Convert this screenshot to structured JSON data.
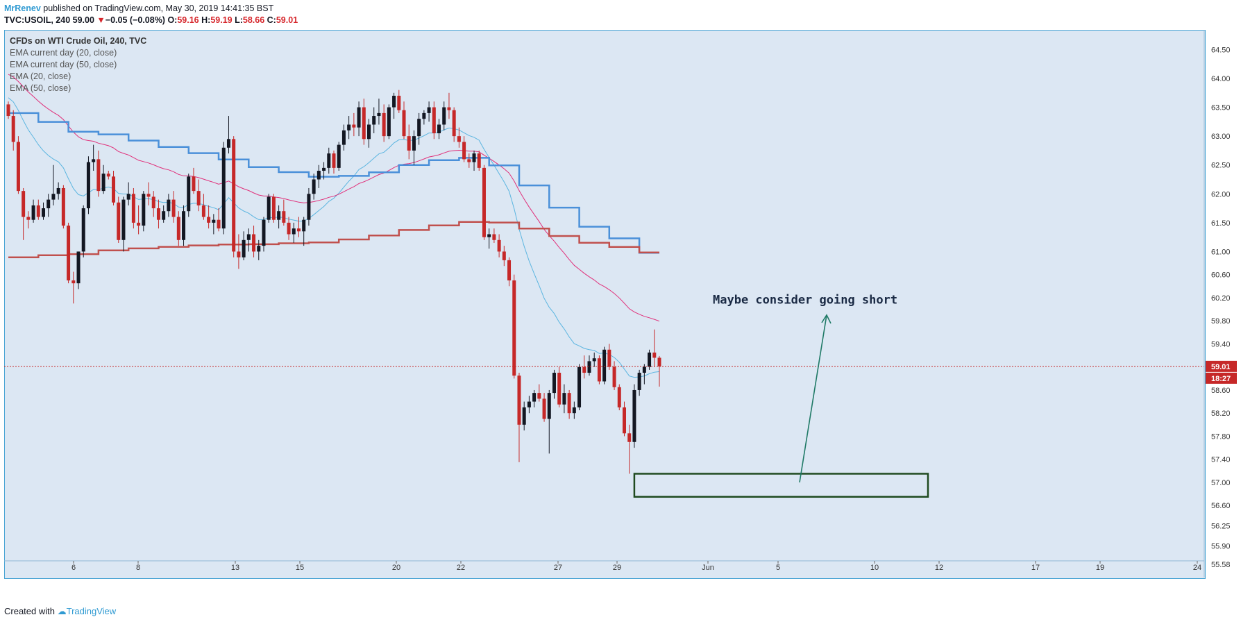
{
  "header": {
    "author": "MrRenev",
    "published": "published on TradingView.com, May 30, 2019 14:41:35 BST",
    "symbol": "TVC:USOIL, 240",
    "last": "59.00",
    "change": "−0.05 (−0.08%)",
    "o_label": "O:",
    "o": "59.16",
    "h_label": "H:",
    "h": "59.19",
    "l_label": "L:",
    "l": "58.66",
    "c_label": "C:",
    "c": "59.01"
  },
  "legend": {
    "title": "CFDs on WTI Crude Oil, 240, TVC",
    "items": [
      "EMA current day (20, close)",
      "EMA current day (50, close)",
      "EMA (20, close)",
      "EMA (50, close)"
    ]
  },
  "annotation": {
    "text": "Maybe consider going short"
  },
  "price_label": "59.01",
  "countdown_label": "18:27",
  "footer": {
    "prefix": "Created with",
    "brand": "TradingView"
  },
  "colors": {
    "up": "#131722",
    "down": "#c62828",
    "ema_daily_20": "#4a90d9",
    "ema_daily_50": "#c0504d",
    "ema20": "#5bb5e0",
    "ema50": "#e0307a",
    "annotation": "#1f7a66",
    "box": "#1f4a1f"
  },
  "chart_data": {
    "type": "candlestick",
    "interval": "240",
    "y_ticks": [
      "64.50",
      "64.00",
      "63.50",
      "63.00",
      "62.50",
      "62.00",
      "61.50",
      "61.00",
      "60.60",
      "60.20",
      "59.80",
      "59.40",
      "59.01",
      "58.60",
      "58.20",
      "57.80",
      "57.40",
      "57.00",
      "56.60",
      "56.25",
      "55.90",
      "55.58"
    ],
    "x_ticks": [
      "6",
      "8",
      "13",
      "15",
      "20",
      "22",
      "27",
      "29",
      "Jun",
      "5",
      "10",
      "12",
      "17",
      "19",
      "24"
    ],
    "price_range": [
      55.45,
      64.8
    ],
    "last_price": 59.01,
    "candles": [
      [
        63.55,
        63.6,
        63.3,
        63.35
      ],
      [
        63.35,
        63.45,
        62.75,
        62.9
      ],
      [
        62.9,
        63.0,
        62.0,
        62.05
      ],
      [
        62.05,
        62.1,
        61.2,
        61.6
      ],
      [
        61.6,
        61.7,
        61.4,
        61.55
      ],
      [
        61.55,
        61.9,
        61.5,
        61.8
      ],
      [
        61.8,
        61.9,
        61.55,
        61.6
      ],
      [
        61.6,
        61.85,
        61.55,
        61.75
      ],
      [
        61.75,
        62.0,
        61.6,
        61.9
      ],
      [
        61.9,
        62.5,
        61.8,
        62.0
      ],
      [
        62.0,
        62.2,
        61.9,
        62.1
      ],
      [
        62.1,
        62.15,
        61.4,
        61.45
      ],
      [
        61.45,
        61.5,
        60.45,
        60.5
      ],
      [
        60.5,
        60.65,
        60.1,
        60.45
      ],
      [
        60.45,
        61.0,
        60.35,
        61.0
      ],
      [
        61.0,
        61.8,
        60.9,
        61.75
      ],
      [
        61.75,
        62.65,
        61.65,
        62.55
      ],
      [
        62.55,
        62.85,
        62.4,
        62.6
      ],
      [
        62.6,
        62.75,
        61.95,
        62.05
      ],
      [
        62.05,
        62.5,
        62.0,
        62.35
      ],
      [
        62.35,
        62.4,
        62.25,
        62.3
      ],
      [
        62.3,
        62.4,
        61.8,
        61.85
      ],
      [
        61.85,
        61.95,
        61.15,
        61.2
      ],
      [
        61.2,
        61.95,
        61.0,
        61.9
      ],
      [
        61.9,
        62.2,
        61.8,
        62.0
      ],
      [
        62.0,
        62.1,
        61.4,
        61.5
      ],
      [
        61.5,
        61.8,
        61.3,
        61.45
      ],
      [
        61.45,
        62.05,
        61.35,
        62.0
      ],
      [
        62.0,
        62.2,
        61.8,
        61.95
      ],
      [
        61.95,
        62.05,
        61.6,
        61.75
      ],
      [
        61.75,
        61.9,
        61.4,
        61.55
      ],
      [
        61.55,
        61.8,
        61.5,
        61.7
      ],
      [
        61.7,
        62.0,
        61.6,
        61.9
      ],
      [
        61.9,
        62.05,
        61.5,
        61.6
      ],
      [
        61.6,
        61.7,
        61.1,
        61.2
      ],
      [
        61.2,
        61.8,
        61.1,
        61.7
      ],
      [
        61.7,
        62.35,
        61.6,
        62.3
      ],
      [
        62.3,
        62.45,
        62.0,
        62.05
      ],
      [
        62.05,
        62.25,
        61.7,
        61.8
      ],
      [
        61.8,
        62.0,
        61.55,
        61.6
      ],
      [
        61.6,
        61.8,
        61.4,
        61.5
      ],
      [
        61.5,
        61.65,
        61.3,
        61.55
      ],
      [
        61.55,
        61.75,
        61.35,
        61.4
      ],
      [
        61.4,
        62.9,
        61.3,
        62.8
      ],
      [
        62.8,
        63.35,
        62.7,
        62.95
      ],
      [
        62.95,
        63.0,
        60.9,
        61.0
      ],
      [
        61.0,
        61.3,
        60.7,
        60.9
      ],
      [
        60.9,
        61.35,
        60.85,
        61.2
      ],
      [
        61.2,
        61.4,
        61.0,
        61.3
      ],
      [
        61.3,
        61.45,
        60.9,
        61.0
      ],
      [
        61.0,
        61.2,
        60.85,
        61.1
      ],
      [
        61.1,
        61.6,
        61.0,
        61.55
      ],
      [
        61.55,
        62.0,
        61.5,
        61.95
      ],
      [
        61.95,
        62.0,
        61.5,
        61.55
      ],
      [
        61.55,
        61.8,
        61.4,
        61.7
      ],
      [
        61.7,
        61.9,
        61.45,
        61.5
      ],
      [
        61.5,
        61.6,
        61.2,
        61.3
      ],
      [
        61.3,
        61.5,
        61.15,
        61.4
      ],
      [
        61.4,
        61.6,
        61.25,
        61.35
      ],
      [
        61.35,
        61.6,
        61.1,
        61.55
      ],
      [
        61.55,
        62.1,
        61.45,
        62.0
      ],
      [
        62.0,
        62.35,
        61.9,
        62.25
      ],
      [
        62.25,
        62.5,
        62.1,
        62.4
      ],
      [
        62.4,
        62.55,
        62.25,
        62.45
      ],
      [
        62.45,
        62.8,
        62.35,
        62.7
      ],
      [
        62.7,
        62.75,
        62.35,
        62.45
      ],
      [
        62.45,
        62.9,
        62.4,
        62.85
      ],
      [
        62.85,
        63.2,
        62.75,
        63.1
      ],
      [
        63.1,
        63.35,
        62.95,
        63.2
      ],
      [
        63.2,
        63.4,
        63.0,
        63.15
      ],
      [
        63.15,
        63.6,
        63.0,
        63.5
      ],
      [
        63.5,
        63.65,
        62.85,
        62.95
      ],
      [
        62.95,
        63.3,
        62.8,
        63.2
      ],
      [
        63.2,
        63.5,
        63.05,
        63.35
      ],
      [
        63.35,
        63.65,
        63.2,
        63.4
      ],
      [
        63.4,
        63.55,
        62.9,
        63.0
      ],
      [
        63.0,
        63.55,
        62.95,
        63.5
      ],
      [
        63.5,
        63.75,
        63.3,
        63.7
      ],
      [
        63.7,
        63.8,
        63.4,
        63.45
      ],
      [
        63.45,
        63.6,
        62.95,
        63.0
      ],
      [
        63.0,
        63.2,
        62.6,
        62.75
      ],
      [
        62.75,
        63.1,
        62.5,
        63.0
      ],
      [
        63.0,
        63.4,
        62.85,
        63.3
      ],
      [
        63.3,
        63.45,
        63.2,
        63.4
      ],
      [
        63.4,
        63.6,
        63.25,
        63.5
      ],
      [
        63.5,
        63.6,
        62.95,
        63.05
      ],
      [
        63.05,
        63.3,
        62.95,
        63.2
      ],
      [
        63.2,
        63.6,
        63.1,
        63.5
      ],
      [
        63.5,
        63.75,
        63.3,
        63.45
      ],
      [
        63.45,
        63.5,
        62.9,
        63.0
      ],
      [
        63.0,
        63.15,
        62.8,
        62.9
      ],
      [
        62.9,
        63.0,
        62.55,
        62.6
      ],
      [
        62.6,
        62.7,
        62.45,
        62.55
      ],
      [
        62.55,
        62.75,
        62.4,
        62.7
      ],
      [
        62.7,
        62.75,
        62.4,
        62.45
      ],
      [
        62.45,
        62.5,
        61.2,
        61.25
      ],
      [
        61.25,
        61.4,
        61.05,
        61.3
      ],
      [
        61.3,
        61.4,
        61.15,
        61.2
      ],
      [
        61.2,
        61.3,
        60.9,
        61.0
      ],
      [
        61.0,
        61.1,
        60.75,
        60.85
      ],
      [
        60.85,
        60.9,
        60.4,
        60.5
      ],
      [
        60.5,
        60.6,
        58.8,
        58.85
      ],
      [
        58.85,
        58.9,
        57.35,
        58.0
      ],
      [
        58.0,
        58.4,
        57.9,
        58.3
      ],
      [
        58.3,
        58.5,
        58.2,
        58.4
      ],
      [
        58.4,
        58.6,
        58.3,
        58.55
      ],
      [
        58.55,
        58.7,
        58.4,
        58.45
      ],
      [
        58.45,
        58.55,
        58.05,
        58.1
      ],
      [
        58.1,
        58.6,
        57.5,
        58.55
      ],
      [
        58.55,
        58.95,
        58.45,
        58.9
      ],
      [
        58.9,
        59.0,
        58.3,
        58.35
      ],
      [
        58.35,
        58.7,
        58.2,
        58.55
      ],
      [
        58.55,
        58.6,
        58.1,
        58.2
      ],
      [
        58.2,
        58.4,
        58.1,
        58.3
      ],
      [
        58.3,
        59.05,
        58.25,
        59.0
      ],
      [
        59.0,
        59.2,
        58.8,
        58.9
      ],
      [
        58.9,
        59.2,
        58.85,
        59.1
      ],
      [
        59.1,
        59.25,
        59.0,
        59.15
      ],
      [
        59.15,
        59.2,
        58.7,
        58.75
      ],
      [
        58.75,
        59.35,
        58.7,
        59.3
      ],
      [
        59.3,
        59.4,
        58.95,
        59.0
      ],
      [
        59.0,
        59.1,
        58.6,
        58.65
      ],
      [
        58.65,
        58.7,
        58.25,
        58.3
      ],
      [
        58.3,
        58.4,
        57.8,
        57.85
      ],
      [
        57.85,
        58.0,
        57.15,
        57.7
      ],
      [
        57.7,
        58.7,
        57.6,
        58.6
      ],
      [
        58.6,
        58.95,
        58.5,
        58.9
      ],
      [
        58.9,
        59.05,
        58.7,
        59.0
      ],
      [
        59.0,
        59.3,
        58.95,
        59.25
      ],
      [
        59.25,
        59.65,
        59.0,
        59.16
      ],
      [
        59.16,
        59.19,
        58.66,
        59.01
      ]
    ]
  }
}
